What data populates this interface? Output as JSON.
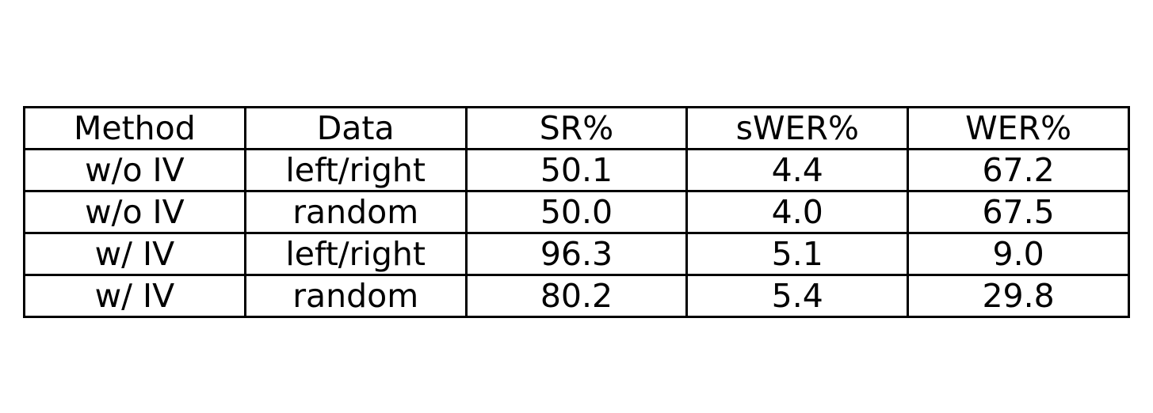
{
  "chart_data": {
    "type": "table",
    "columns": [
      "Method",
      "Data",
      "SR%",
      "sWER%",
      "WER%"
    ],
    "rows": [
      [
        "w/o IV",
        "left/right",
        "50.1",
        "4.4",
        "67.2"
      ],
      [
        "w/o IV",
        "random",
        "50.0",
        "4.0",
        "67.5"
      ],
      [
        "w/ IV",
        "left/right",
        "96.3",
        "5.1",
        "9.0"
      ],
      [
        "w/ IV",
        "random",
        "80.2",
        "5.4",
        "29.8"
      ]
    ]
  }
}
